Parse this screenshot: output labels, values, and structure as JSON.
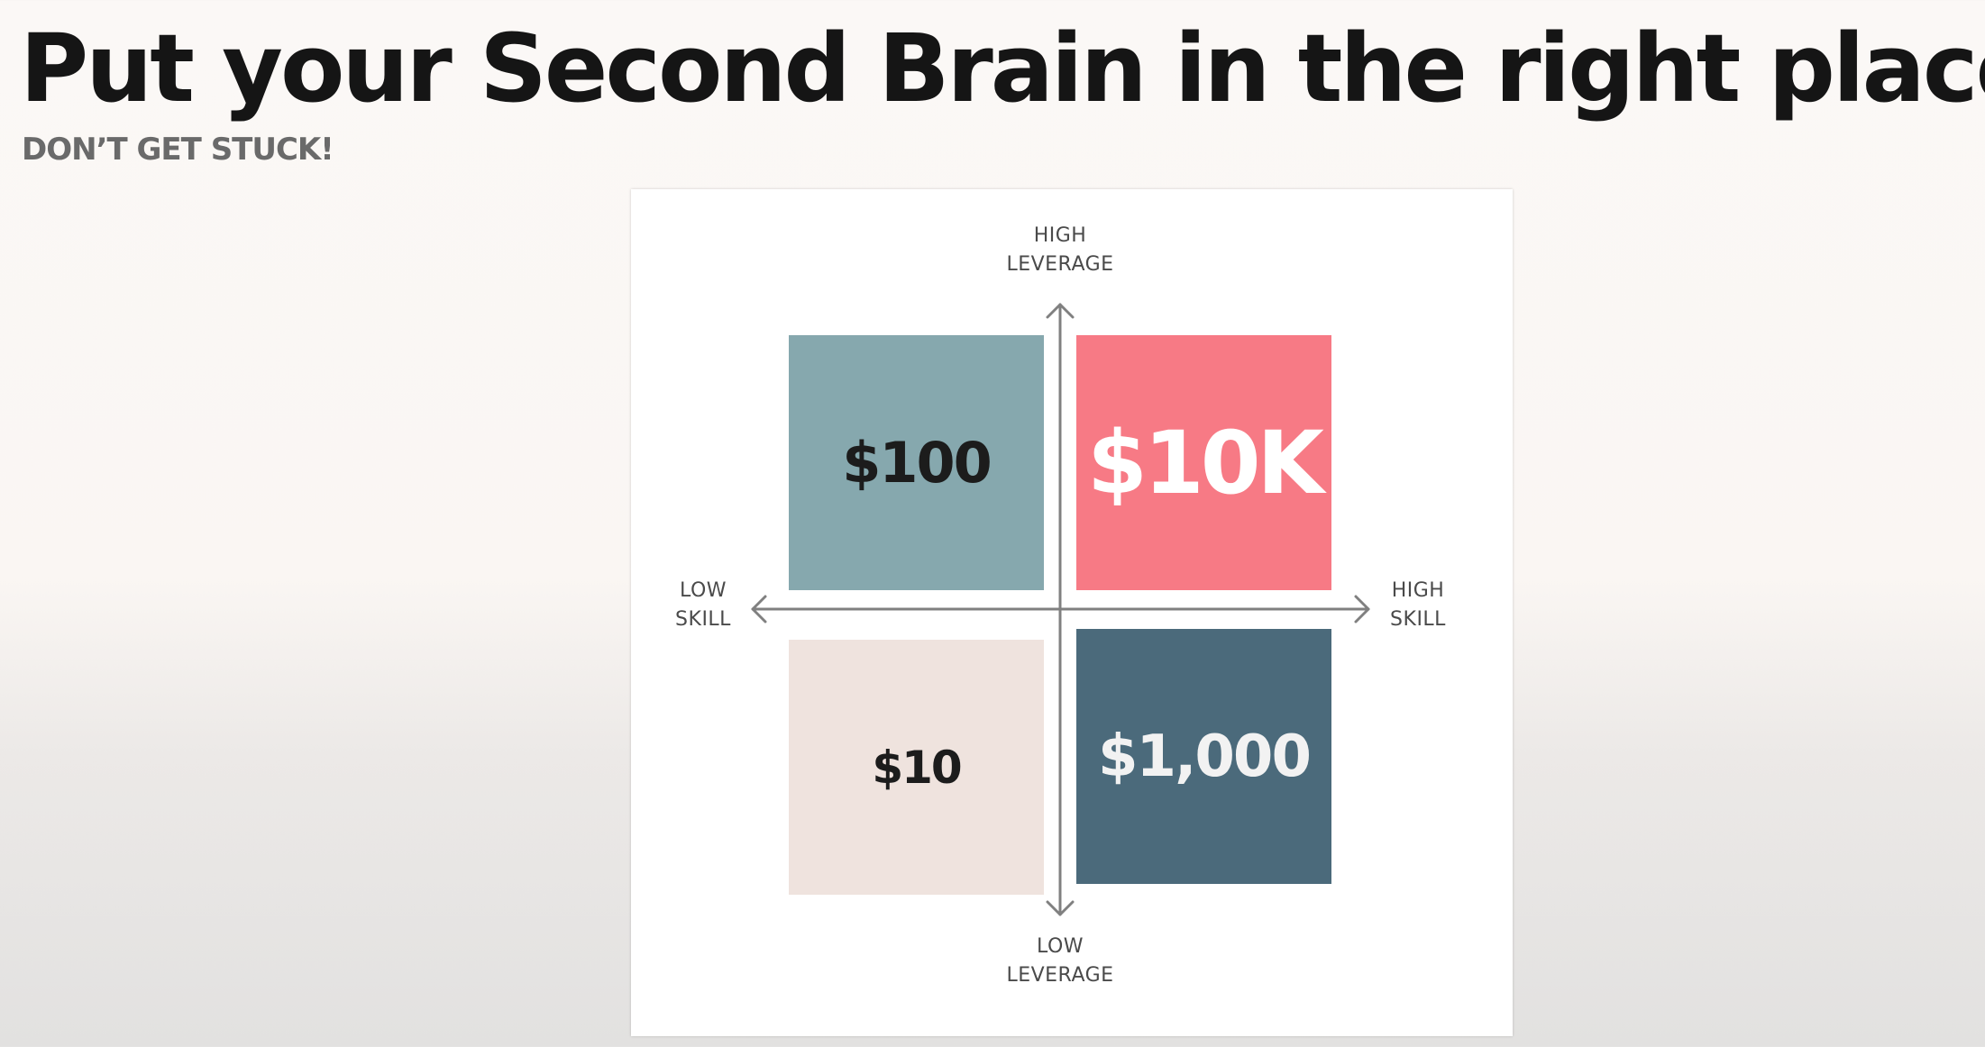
{
  "title": "Put your Second Brain in the right place",
  "subtitle": "DON’T GET STUCK!",
  "diagram": {
    "axes": {
      "top": [
        "HIGH",
        "LEVERAGE"
      ],
      "bottom": [
        "LOW",
        "LEVERAGE"
      ],
      "left": [
        "LOW",
        "SKILL"
      ],
      "right": [
        "HIGH",
        "SKILL"
      ]
    },
    "quadrants": {
      "top_left": {
        "label": "$100",
        "color": "#86a8ae",
        "text_color": "#1c1c1c"
      },
      "top_right": {
        "label": "$10K",
        "color": "#f77a85",
        "text_color": "#ffffff"
      },
      "bottom_left": {
        "label": "$10",
        "color": "#efe3de",
        "text_color": "#1c1c1c"
      },
      "bottom_right": {
        "label": "$1,000",
        "color": "#4b6a7b",
        "text_color": "#f2f2f2"
      }
    },
    "axis_color": "#808080"
  }
}
